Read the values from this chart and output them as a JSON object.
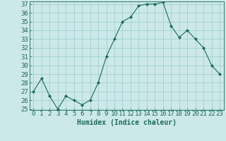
{
  "x": [
    0,
    1,
    2,
    3,
    4,
    5,
    6,
    7,
    8,
    9,
    10,
    11,
    12,
    13,
    14,
    15,
    16,
    17,
    18,
    19,
    20,
    21,
    22,
    23
  ],
  "y": [
    27,
    28.5,
    26.5,
    25,
    26.5,
    26,
    25.5,
    26,
    28,
    31,
    33,
    35,
    35.5,
    36.8,
    37,
    37,
    37.2,
    34.5,
    33.2,
    34,
    33,
    32,
    30,
    29
  ],
  "line_color": "#1a6b5a",
  "marker": "D",
  "marker_size": 2.0,
  "bg_color": "#cce8e8",
  "grid_color": "#99cccc",
  "xlabel": "Humidex (Indice chaleur)",
  "ylim": [
    25,
    37
  ],
  "xlim": [
    -0.5,
    23.5
  ],
  "yticks": [
    25,
    26,
    27,
    28,
    29,
    30,
    31,
    32,
    33,
    34,
    35,
    36,
    37
  ],
  "xticks": [
    0,
    1,
    2,
    3,
    4,
    5,
    6,
    7,
    8,
    9,
    10,
    11,
    12,
    13,
    14,
    15,
    16,
    17,
    18,
    19,
    20,
    21,
    22,
    23
  ],
  "xlabel_fontsize": 7,
  "tick_fontsize": 6.5,
  "tick_color": "#1a6b5a",
  "axis_color": "#1a6b5a",
  "line_width": 0.8
}
